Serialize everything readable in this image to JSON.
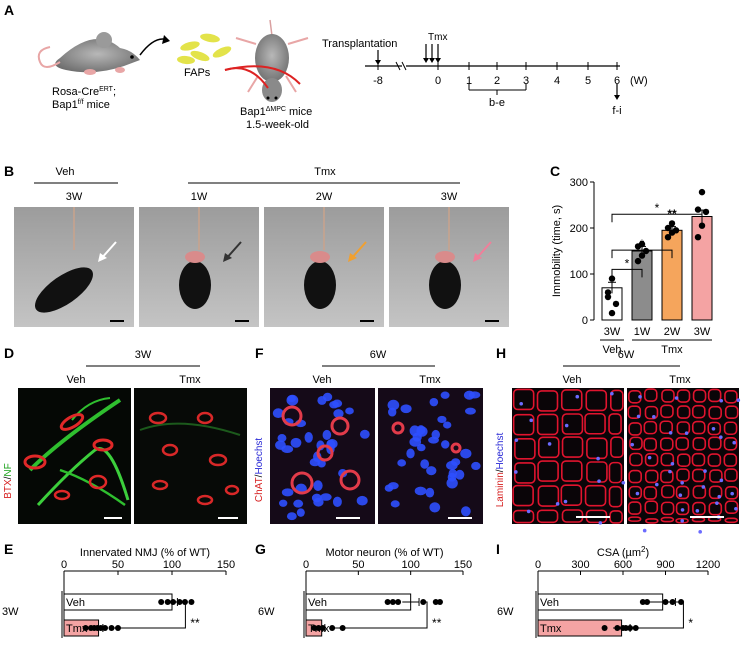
{
  "panels": {
    "a": {
      "letter": "A",
      "cells": "FAPs",
      "mouse_left_l1": "Rosa-Cre",
      "mouse_left_l1_sup": "ERT",
      "mouse_left_l2": "Bap1",
      "mouse_left_l2_sup": "f/f",
      "mouse_left_l2_suffix": " mice",
      "mouse_right_l1": "Bap1",
      "mouse_right_l1_sup": "ΔMPC",
      "mouse_right_l1_suffix": " mice",
      "mouse_right_l2": "1.5-week-old"
    },
    "timeline": {
      "transplant": "Transplantation",
      "tmx": "Tmx",
      "unit": "(W)",
      "ticks": [
        "-8",
        "0",
        "1",
        "2",
        "3",
        "4",
        "5",
        "6"
      ],
      "bracket_label": "b-e",
      "end_label": "f-i"
    },
    "b": {
      "letter": "B",
      "veh": "Veh",
      "tmx": "Tmx",
      "photos": [
        "3W",
        "1W",
        "2W",
        "3W"
      ]
    },
    "c": {
      "letter": "C",
      "veh": "Veh",
      "tmx": "Tmx"
    },
    "d": {
      "letter": "D",
      "time": "3W",
      "veh": "Veh",
      "tmx": "Tmx",
      "stain_a": "BTX",
      "stain_sep": "/",
      "stain_b": "NF"
    },
    "f": {
      "letter": "F",
      "time": "6W",
      "veh": "Veh",
      "tmx": "Tmx",
      "stain_a": "ChAT",
      "stain_sep": "/",
      "stain_b": "Hoechst"
    },
    "h": {
      "letter": "H",
      "time": "6W",
      "veh": "Veh",
      "tmx": "Tmx",
      "stain_a": "Laminin",
      "stain_sep": "/",
      "stain_b": "Hoechst"
    },
    "e": {
      "letter": "E",
      "time": "3W"
    },
    "g": {
      "letter": "G",
      "time": "6W"
    },
    "i": {
      "letter": "I",
      "time": "6W"
    }
  },
  "chart_data": [
    {
      "panel": "C",
      "type": "bar",
      "title": "",
      "ylabel": "Immobility (time, s)",
      "categories": [
        "3W",
        "1W",
        "2W",
        "3W"
      ],
      "groups": [
        "Veh",
        "Tmx",
        "Tmx",
        "Tmx"
      ],
      "values": [
        70,
        150,
        195,
        225
      ],
      "errors": [
        12,
        10,
        8,
        14
      ],
      "colors": [
        "#ffffff",
        "#8c8c8c",
        "#f5a55c",
        "#f4a3a3"
      ],
      "points": [
        [
          50,
          15,
          35,
          60,
          90
        ],
        [
          128,
          140,
          150,
          160,
          165
        ],
        [
          180,
          190,
          195,
          200,
          210
        ],
        [
          180,
          205,
          235,
          240,
          278
        ]
      ],
      "ylim": [
        0,
        300
      ],
      "yticks": [
        0,
        100,
        200,
        300
      ],
      "significance": [
        {
          "pair": [
            0,
            1
          ],
          "label": "*"
        },
        {
          "pair": [
            0,
            2
          ],
          "label": "*"
        },
        {
          "pair": [
            0,
            3
          ],
          "label": "*"
        },
        {
          "pair": [
            2,
            2
          ],
          "label": "**"
        }
      ]
    },
    {
      "panel": "E",
      "type": "bar",
      "orientation": "horizontal",
      "title": "Innervated NMJ (% of WT)",
      "categories": [
        "Veh",
        "Tmx"
      ],
      "values": [
        100,
        32
      ],
      "errors": [
        5,
        4
      ],
      "colors": [
        "#ffffff",
        "#f4a3a3"
      ],
      "points": [
        [
          90,
          96,
          101,
          107,
          112,
          118
        ],
        [
          20,
          25,
          28,
          31,
          34,
          38,
          44,
          50
        ]
      ],
      "xlim": [
        0,
        150
      ],
      "xticks": [
        0,
        50,
        100,
        150
      ],
      "significance": "**"
    },
    {
      "panel": "G",
      "type": "bar",
      "orientation": "horizontal",
      "title": "Motor neuron (% of WT)",
      "categories": [
        "Veh",
        "Tmx"
      ],
      "values": [
        100,
        15
      ],
      "errors": [
        8,
        3
      ],
      "colors": [
        "#ffffff",
        "#f4a3a3"
      ],
      "points": [
        [
          78,
          83,
          88,
          112,
          124,
          128
        ],
        [
          8,
          12,
          16,
          25,
          35
        ]
      ],
      "xlim": [
        0,
        150
      ],
      "xticks": [
        0,
        50,
        100,
        150
      ],
      "significance": "**"
    },
    {
      "panel": "I",
      "type": "bar",
      "orientation": "horizontal",
      "title": "CSA (µm²)",
      "title_base": "CSA (µm",
      "title_sup": "2",
      "title_end": ")",
      "categories": [
        "Veh",
        "Tmx"
      ],
      "values": [
        880,
        590
      ],
      "errors": [
        90,
        60
      ],
      "colors": [
        "#ffffff",
        "#f4a3a3"
      ],
      "points": [
        [
          740,
          770,
          900,
          950,
          1010
        ],
        [
          470,
          560,
          600,
          620,
          650,
          690
        ]
      ],
      "xlim": [
        0,
        1200
      ],
      "xticks": [
        0,
        300,
        600,
        900,
        1200
      ],
      "significance": "*"
    }
  ]
}
